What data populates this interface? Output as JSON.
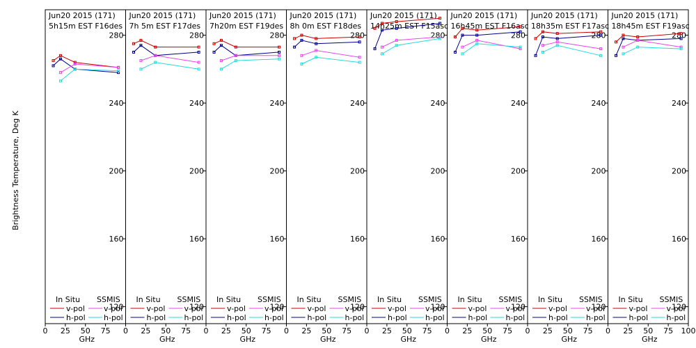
{
  "chart_data": {
    "type": "line",
    "ylabel": "Brightness Temperature, Deg K",
    "xlabel": "GHz",
    "xlim": [
      0,
      100
    ],
    "ylim": [
      110,
      295
    ],
    "yticks": [
      120,
      160,
      200,
      240,
      280
    ],
    "xticks": [
      0,
      25,
      50,
      75,
      100
    ],
    "xtick_labels": [
      "0",
      "25",
      "50",
      "75",
      "100"
    ],
    "legend": {
      "in_situ": "In Situ",
      "ssmis": "SSMIS",
      "vpol": "v-pol",
      "hpol": "h-pol"
    },
    "colors": {
      "insitu_v": "#cc0000",
      "insitu_h": "#00008b",
      "ssmis_v": "#ee44ee",
      "ssmis_h": "#22dddd"
    },
    "panels": [
      {
        "title1": "Jun20 2015 (171)",
        "title2": "5h15m  EST  F16des",
        "series": [
          {
            "key": "insitu_v",
            "x": [
              10,
              19,
              37,
              91
            ],
            "y": [
              265,
              268,
              264,
              261
            ]
          },
          {
            "key": "insitu_h",
            "x": [
              10,
              19,
              37,
              91
            ],
            "y": [
              262,
              266,
              260,
              258
            ]
          },
          {
            "key": "ssmis_v",
            "x": [
              19,
              37,
              91
            ],
            "y": [
              258,
              263,
              261
            ]
          },
          {
            "key": "ssmis_h",
            "x": [
              19,
              37,
              91
            ],
            "y": [
              253,
              260,
              259
            ]
          }
        ]
      },
      {
        "title1": "Jun20 2015 (171)",
        "title2": "7h 5m  EST  F17des",
        "series": [
          {
            "key": "insitu_v",
            "x": [
              10,
              19,
              37,
              91
            ],
            "y": [
              275,
              277,
              273,
              273
            ]
          },
          {
            "key": "insitu_h",
            "x": [
              10,
              19,
              37,
              91
            ],
            "y": [
              270,
              274,
              268,
              270
            ]
          },
          {
            "key": "ssmis_v",
            "x": [
              19,
              37,
              91
            ],
            "y": [
              265,
              268,
              264
            ]
          },
          {
            "key": "ssmis_h",
            "x": [
              19,
              37,
              91
            ],
            "y": [
              260,
              264,
              260
            ]
          }
        ]
      },
      {
        "title1": "Jun20 2015 (171)",
        "title2": "7h20m  EST  F19des",
        "series": [
          {
            "key": "insitu_v",
            "x": [
              10,
              19,
              37,
              91
            ],
            "y": [
              275,
              277,
              273,
              273
            ]
          },
          {
            "key": "insitu_h",
            "x": [
              10,
              19,
              37,
              91
            ],
            "y": [
              270,
              274,
              268,
              270
            ]
          },
          {
            "key": "ssmis_v",
            "x": [
              19,
              37,
              91
            ],
            "y": [
              265,
              268,
              268
            ]
          },
          {
            "key": "ssmis_h",
            "x": [
              19,
              37,
              91
            ],
            "y": [
              260,
              265,
              266
            ]
          }
        ]
      },
      {
        "title1": "Jun20 2015 (171)",
        "title2": "8h 0m  EST  F18des",
        "series": [
          {
            "key": "insitu_v",
            "x": [
              10,
              19,
              37,
              91
            ],
            "y": [
              278,
              280,
              278,
              279
            ]
          },
          {
            "key": "insitu_h",
            "x": [
              10,
              19,
              37,
              91
            ],
            "y": [
              273,
              277,
              275,
              276
            ]
          },
          {
            "key": "ssmis_v",
            "x": [
              19,
              37,
              91
            ],
            "y": [
              268,
              271,
              267
            ]
          },
          {
            "key": "ssmis_h",
            "x": [
              19,
              37,
              91
            ],
            "y": [
              263,
              267,
              264
            ]
          }
        ]
      },
      {
        "title1": "Jun20 2015 (171)",
        "title2": "14h25m  EST  F15asc",
        "series": [
          {
            "key": "insitu_v",
            "x": [
              10,
              19,
              37,
              91
            ],
            "y": [
              284,
              287,
              288,
              290
            ]
          },
          {
            "key": "insitu_h",
            "x": [
              10,
              19,
              37,
              91
            ],
            "y": [
              272,
              283,
              284,
              287
            ]
          },
          {
            "key": "ssmis_v",
            "x": [
              19,
              37,
              91
            ],
            "y": [
              273,
              277,
              279
            ]
          },
          {
            "key": "ssmis_h",
            "x": [
              19,
              37,
              91
            ],
            "y": [
              269,
              274,
              278
            ]
          }
        ]
      },
      {
        "title1": "Jun20 2015 (171)",
        "title2": "16h45m  EST  F16asc",
        "series": [
          {
            "key": "insitu_v",
            "x": [
              10,
              19,
              37,
              91
            ],
            "y": [
              279,
              284,
              283,
              285
            ]
          },
          {
            "key": "insitu_h",
            "x": [
              10,
              19,
              37,
              91
            ],
            "y": [
              270,
              280,
              280,
              282
            ]
          },
          {
            "key": "ssmis_v",
            "x": [
              19,
              37,
              91
            ],
            "y": [
              273,
              277,
              272
            ]
          },
          {
            "key": "ssmis_h",
            "x": [
              19,
              37,
              91
            ],
            "y": [
              269,
              275,
              273
            ]
          }
        ]
      },
      {
        "title1": "Jun20 2015 (171)",
        "title2": "18h35m  EST  F17asc",
        "series": [
          {
            "key": "insitu_v",
            "x": [
              10,
              19,
              37,
              91
            ],
            "y": [
              278,
              282,
              281,
              282
            ]
          },
          {
            "key": "insitu_h",
            "x": [
              10,
              19,
              37,
              91
            ],
            "y": [
              268,
              279,
              278,
              280
            ]
          },
          {
            "key": "ssmis_v",
            "x": [
              19,
              37,
              91
            ],
            "y": [
              274,
              276,
              272
            ]
          },
          {
            "key": "ssmis_h",
            "x": [
              19,
              37,
              91
            ],
            "y": [
              270,
              274,
              268
            ]
          }
        ]
      },
      {
        "title1": "Jun20 2015 (171)",
        "title2": "18h45m  EST  F19asc",
        "series": [
          {
            "key": "insitu_v",
            "x": [
              10,
              19,
              37,
              91
            ],
            "y": [
              276,
              280,
              279,
              281
            ]
          },
          {
            "key": "insitu_h",
            "x": [
              10,
              19,
              37,
              91
            ],
            "y": [
              268,
              278,
              277,
              278
            ]
          },
          {
            "key": "ssmis_v",
            "x": [
              19,
              37,
              91
            ],
            "y": [
              273,
              277,
              273
            ]
          },
          {
            "key": "ssmis_h",
            "x": [
              19,
              37,
              91
            ],
            "y": [
              269,
              273,
              272
            ]
          }
        ]
      }
    ]
  }
}
